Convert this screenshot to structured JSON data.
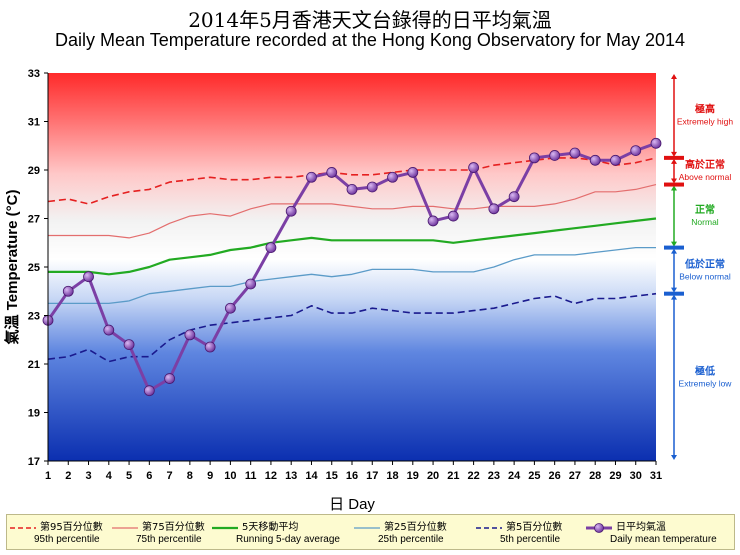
{
  "title_zh": "2014年5月香港天文台錄得的日平均氣溫",
  "title_en": "Daily Mean Temperature recorded at the Hong Kong Observatory for May 2014",
  "colors": {
    "mean": "#7b3fa5",
    "mean_marker": "#8e5bbf",
    "p95": "#e52020",
    "p75": "#e36e6e",
    "avg5": "#22aa22",
    "p25": "#5b9bc8",
    "p5": "#1a1a8e",
    "zone_high": "#ff2020",
    "zone_normal": "#22aa22",
    "zone_low": "#1a5fd0"
  },
  "chart_data": {
    "type": "line",
    "x": [
      1,
      2,
      3,
      4,
      5,
      6,
      7,
      8,
      9,
      10,
      11,
      12,
      13,
      14,
      15,
      16,
      17,
      18,
      19,
      20,
      21,
      22,
      23,
      24,
      25,
      26,
      27,
      28,
      29,
      30,
      31
    ],
    "xlabel": "日 Day",
    "ylabel": "氣溫 Temperature (°C)",
    "xlim": [
      1,
      31
    ],
    "ylim": [
      17,
      33
    ],
    "yticks": [
      17,
      19,
      21,
      23,
      25,
      27,
      29,
      31,
      33
    ],
    "grid": false,
    "legend_position": "bottom",
    "series": [
      {
        "key": "p95",
        "name_zh": "第95百分位數",
        "name": "95th percentile",
        "style": "dashed",
        "values": [
          27.7,
          27.8,
          27.6,
          27.9,
          28.1,
          28.2,
          28.5,
          28.6,
          28.7,
          28.6,
          28.6,
          28.7,
          28.7,
          28.8,
          28.9,
          28.8,
          28.8,
          28.9,
          29.0,
          29.0,
          29.0,
          29.0,
          29.2,
          29.3,
          29.4,
          29.5,
          29.5,
          29.4,
          29.2,
          29.3,
          29.5
        ]
      },
      {
        "key": "p75",
        "name_zh": "第75百分位數",
        "name": "75th percentile",
        "style": "solid",
        "values": [
          26.3,
          26.3,
          26.3,
          26.3,
          26.2,
          26.4,
          26.8,
          27.1,
          27.2,
          27.1,
          27.4,
          27.6,
          27.6,
          27.6,
          27.6,
          27.5,
          27.4,
          27.4,
          27.5,
          27.5,
          27.4,
          27.4,
          27.5,
          27.5,
          27.5,
          27.6,
          27.8,
          28.1,
          28.1,
          28.2,
          28.4
        ]
      },
      {
        "key": "avg5",
        "name_zh": "5天移動平均",
        "name": "Running 5-day average",
        "style": "solid",
        "values": [
          24.8,
          24.8,
          24.8,
          24.7,
          24.8,
          25.0,
          25.3,
          25.4,
          25.5,
          25.7,
          25.8,
          26.0,
          26.1,
          26.2,
          26.1,
          26.1,
          26.1,
          26.1,
          26.1,
          26.1,
          26.0,
          26.1,
          26.2,
          26.3,
          26.4,
          26.5,
          26.6,
          26.7,
          26.8,
          26.9,
          27.0
        ]
      },
      {
        "key": "p25",
        "name_zh": "第25百分位數",
        "name": "25th percentile",
        "style": "solid",
        "values": [
          23.5,
          23.5,
          23.5,
          23.5,
          23.6,
          23.9,
          24.0,
          24.1,
          24.2,
          24.2,
          24.4,
          24.5,
          24.6,
          24.7,
          24.6,
          24.7,
          24.9,
          24.9,
          24.9,
          24.8,
          24.8,
          24.8,
          25.0,
          25.3,
          25.5,
          25.5,
          25.5,
          25.6,
          25.7,
          25.8,
          25.8
        ]
      },
      {
        "key": "p5",
        "name_zh": "第5百分位數",
        "name": "5th percentile",
        "style": "dashed",
        "values": [
          21.2,
          21.3,
          21.6,
          21.1,
          21.3,
          21.3,
          22.0,
          22.4,
          22.6,
          22.7,
          22.8,
          22.9,
          23.0,
          23.4,
          23.1,
          23.1,
          23.3,
          23.2,
          23.1,
          23.1,
          23.1,
          23.2,
          23.3,
          23.5,
          23.7,
          23.8,
          23.5,
          23.7,
          23.7,
          23.8,
          23.9
        ]
      },
      {
        "key": "mean",
        "name_zh": "日平均氣溫",
        "name": "Daily mean temperature",
        "style": "marker",
        "values": [
          22.8,
          24.0,
          24.6,
          22.4,
          21.8,
          19.9,
          20.4,
          22.2,
          21.7,
          23.3,
          24.3,
          25.8,
          27.3,
          28.7,
          28.9,
          28.2,
          28.3,
          28.7,
          28.9,
          26.9,
          27.1,
          29.1,
          27.4,
          27.9,
          29.5,
          29.6,
          29.7,
          29.4,
          29.4,
          29.8,
          30.1
        ]
      }
    ],
    "zones": [
      {
        "key": "high",
        "label_zh": "極高",
        "label_en": "Extremely high",
        "color": "#e01010"
      },
      {
        "key": "above",
        "label_zh": "高於正常",
        "label_en": "Above normal",
        "color": "#e01010"
      },
      {
        "key": "normal",
        "label_zh": "正常",
        "label_en": "Normal",
        "color": "#22aa22"
      },
      {
        "key": "below",
        "label_zh": "低於正常",
        "label_en": "Below normal",
        "color": "#1a5fd0"
      },
      {
        "key": "low",
        "label_zh": "極低",
        "label_en": "Extremely low",
        "color": "#1a5fd0"
      }
    ]
  }
}
